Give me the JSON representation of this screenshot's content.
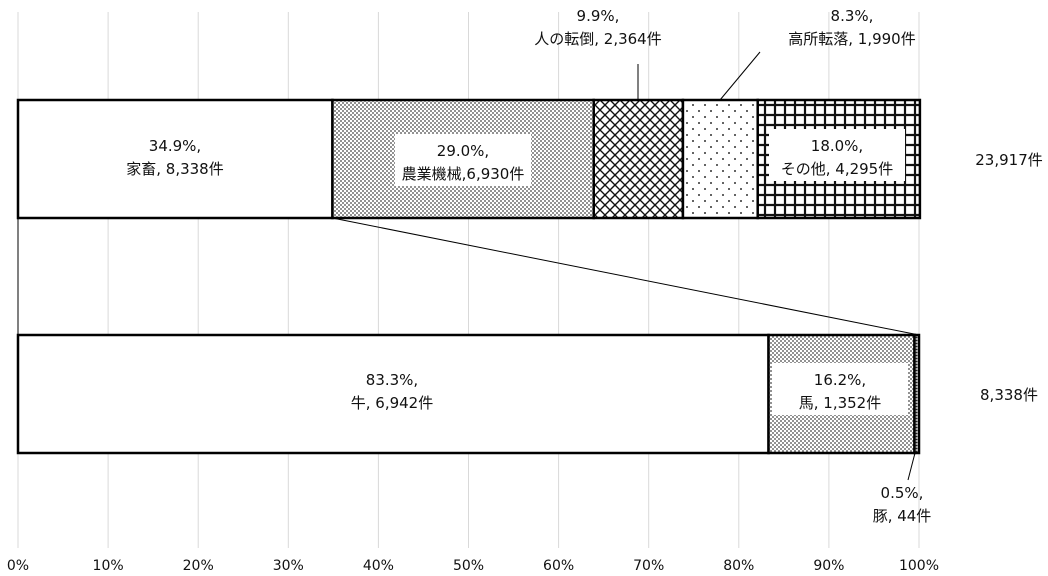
{
  "chart_data": {
    "type": "bar",
    "orientation": "horizontal",
    "stacked": "percent",
    "xlim": [
      0,
      100
    ],
    "x_ticks": [
      "0%",
      "10%",
      "20%",
      "30%",
      "40%",
      "50%",
      "60%",
      "70%",
      "80%",
      "90%",
      "100%"
    ],
    "grid": "vertical",
    "connector": "家畜 segment of top bar expands into bottom bar",
    "bars": [
      {
        "total_label": "23,917件",
        "segments": [
          {
            "category": "家畜",
            "percent": 34.9,
            "count": 8338,
            "line1": "34.9%,",
            "line2": "家畜, 8,338件",
            "pattern": "solid-white"
          },
          {
            "category": "農業機械",
            "percent": 29.0,
            "count": 6930,
            "line1": "29.0%,",
            "line2": "農業機械,6,930件",
            "pattern": "fine-dots"
          },
          {
            "category": "人の転倒",
            "percent": 9.9,
            "count": 2364,
            "line1": "9.9%,",
            "line2": "人の転倒, 2,364件",
            "pattern": "crosshatch"
          },
          {
            "category": "高所転落",
            "percent": 8.3,
            "count": 1990,
            "line1": "8.3%,",
            "line2": "高所転落, 1,990件",
            "pattern": "sparse-dots"
          },
          {
            "category": "その他",
            "percent": 18.0,
            "count": 4295,
            "line1": "18.0%,",
            "line2": "その他, 4,295件",
            "pattern": "grid"
          }
        ]
      },
      {
        "total_label": "8,338件",
        "segments": [
          {
            "category": "牛",
            "percent": 83.3,
            "count": 6942,
            "line1": "83.3%,",
            "line2": "牛, 6,942件",
            "pattern": "solid-white"
          },
          {
            "category": "馬",
            "percent": 16.2,
            "count": 1352,
            "line1": "16.2%,",
            "line2": "馬, 1,352件",
            "pattern": "fine-dots"
          },
          {
            "category": "豚",
            "percent": 0.5,
            "count": 44,
            "line1": "0.5%,",
            "line2": "豚, 44件",
            "pattern": "dense-dots"
          }
        ]
      }
    ]
  }
}
